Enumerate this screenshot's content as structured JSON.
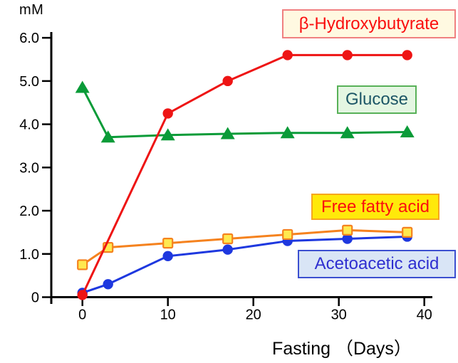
{
  "chart_data": {
    "type": "line",
    "title": "",
    "xlabel": "Fasting （Days）",
    "ylabel": "mM",
    "xlim": [
      0,
      40
    ],
    "ylim": [
      0,
      6
    ],
    "x_ticks": [
      0,
      10,
      20,
      30,
      40
    ],
    "x_tick_labels": [
      "0",
      "10",
      "20",
      "30",
      "40"
    ],
    "y_ticks": [
      0,
      1,
      2,
      3,
      4,
      5,
      6
    ],
    "y_tick_labels": [
      "0",
      "1.0",
      "2.0",
      "3.0",
      "4.0",
      "5.0",
      "6.0"
    ],
    "grid": false,
    "legend_position": "floating-boxes",
    "axis_color": "#000000",
    "series": [
      {
        "name": "β-Hydroxybutyrate",
        "marker": "circle",
        "color": "#EE1414",
        "marker_fill": "#EE1414",
        "x": [
          0,
          10,
          17,
          24,
          31,
          38
        ],
        "values": [
          0.05,
          4.25,
          5.0,
          5.6,
          5.6,
          5.6
        ]
      },
      {
        "name": "Glucose",
        "marker": "triangle",
        "color": "#0A9B38",
        "marker_fill": "#0A9B38",
        "x": [
          0,
          3,
          10,
          17,
          24,
          31,
          38
        ],
        "values": [
          4.85,
          3.7,
          3.75,
          3.78,
          3.8,
          3.8,
          3.82
        ]
      },
      {
        "name": "Free fatty acid",
        "marker": "square",
        "color": "#F5821E",
        "marker_fill": "#FFE94F",
        "x": [
          0,
          3,
          10,
          17,
          24,
          31,
          38
        ],
        "values": [
          0.75,
          1.15,
          1.25,
          1.35,
          1.45,
          1.55,
          1.5
        ]
      },
      {
        "name": "Acetoacetic acid",
        "marker": "circle",
        "color": "#1E38DF",
        "marker_fill": "#1E38DF",
        "x": [
          0,
          3,
          10,
          17,
          24,
          31,
          38
        ],
        "values": [
          0.1,
          0.3,
          0.95,
          1.1,
          1.3,
          1.35,
          1.4
        ]
      }
    ],
    "legend_boxes": [
      {
        "label": "β-Hydroxybutyrate",
        "bg": "#FFF9E1",
        "border": "#F08080",
        "text_color": "#FA0F0F"
      },
      {
        "label": "Glucose",
        "bg": "#E4F6E2",
        "border": "#58B158",
        "text_color": "#1C5666"
      },
      {
        "label": "Free fatty acid",
        "bg": "#FFE90A",
        "border": "#F6A61F",
        "text_color": "#FA0F0F"
      },
      {
        "label": "Acetoacetic acid",
        "bg": "#D9E5F6",
        "border": "#3B4FD0",
        "text_color": "#2F2FD0"
      }
    ]
  }
}
